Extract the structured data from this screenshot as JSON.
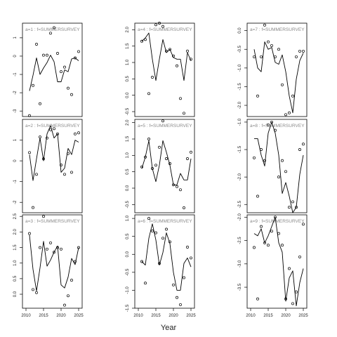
{
  "chart_data": [
    {
      "type": "line",
      "panel": "a=1",
      "label": "a=1 : f=SUMMERSURVEY",
      "ylim": [
        -3.3,
        1.8
      ],
      "yticks": [
        -3,
        -2,
        -1,
        0,
        1
      ],
      "series": [
        {
          "kind": "line",
          "x": [
            2011,
            2012,
            2013,
            2014,
            2015,
            2016,
            2017,
            2018,
            2019,
            2020,
            2021,
            2022,
            2023,
            2024,
            2025
          ],
          "values": [
            -1.9,
            -1.05,
            -0.1,
            -1.0,
            -0.65,
            -0.35,
            0.05,
            -0.3,
            -1.4,
            -1.4,
            -0.75,
            -0.85,
            -0.15,
            -0.1,
            -0.25
          ]
        },
        {
          "kind": "points",
          "x": [
            2011,
            2012,
            2013,
            2014,
            2015,
            2016,
            2017,
            2018,
            2019,
            2020,
            2021,
            2022,
            2023,
            2024,
            2025
          ],
          "values": [
            -3.25,
            -1.6,
            0.65,
            -2.6,
            0.05,
            0.05,
            1.25,
            1.55,
            0.15,
            -0.85,
            -0.6,
            -1.75,
            -2.1,
            -0.1,
            0.25
          ]
        }
      ]
    },
    {
      "type": "line",
      "panel": "a=4",
      "label": "a=4 : f=SUMMERSURVEY",
      "ylim": [
        -0.65,
        2.2
      ],
      "yticks": [
        -0.5,
        0.0,
        0.5,
        1.0,
        1.5,
        2.0
      ],
      "series": [
        {
          "kind": "line",
          "x": [
            2011,
            2012,
            2013,
            2014,
            2015,
            2016,
            2017,
            2018,
            2019,
            2020,
            2021,
            2022,
            2023,
            2024,
            2025
          ],
          "values": [
            1.65,
            1.75,
            1.9,
            1.1,
            0.45,
            1.1,
            1.7,
            1.3,
            1.4,
            1.15,
            1.1,
            1.1,
            0.45,
            1.3,
            1.05
          ]
        },
        {
          "kind": "points",
          "x": [
            2011,
            2012,
            2013,
            2014,
            2015,
            2016,
            2017,
            2018,
            2019,
            2020,
            2021,
            2022,
            2023,
            2024,
            2025
          ],
          "values": [
            1.65,
            1.7,
            0.05,
            0.55,
            2.15,
            2.2,
            2.1,
            1.35,
            1.4,
            1.2,
            0.9,
            -0.1,
            -0.55,
            1.35,
            1.1
          ]
        }
      ]
    },
    {
      "type": "line",
      "panel": "a=7",
      "label": "a=7 : f=SUMMERSURVEY",
      "ylim": [
        -2.3,
        0.2
      ],
      "yticks": [
        -2.0,
        -1.5,
        -1.0,
        -0.5,
        0.0
      ],
      "series": [
        {
          "kind": "line",
          "x": [
            2011,
            2012,
            2013,
            2014,
            2015,
            2016,
            2017,
            2018,
            2019,
            2020,
            2021,
            2022,
            2023,
            2024,
            2025
          ],
          "values": [
            -0.5,
            -1.0,
            -1.1,
            -0.3,
            -0.5,
            -0.45,
            -0.85,
            -0.9,
            -0.65,
            -1.1,
            -1.75,
            -2.2,
            -1.3,
            -0.8,
            -0.6
          ]
        },
        {
          "kind": "points",
          "x": [
            2011,
            2012,
            2013,
            2014,
            2015,
            2016,
            2017,
            2018,
            2019,
            2020,
            2021,
            2022,
            2023,
            2024,
            2025
          ],
          "values": [
            -0.7,
            -1.75,
            -0.7,
            0.15,
            -0.3,
            -0.4,
            -0.7,
            -0.5,
            -1.45,
            -2.25,
            -2.2,
            -1.75,
            -0.7,
            -0.55,
            -0.55
          ]
        }
      ]
    },
    {
      "type": "line",
      "panel": "a=2",
      "label": "a=2 : f=SUMMERSURVEY",
      "ylim": [
        -2.5,
        2.0
      ],
      "yticks": [
        -2,
        -1,
        0,
        1
      ],
      "series": [
        {
          "kind": "line",
          "x": [
            2011,
            2012,
            2013,
            2014,
            2015,
            2016,
            2017,
            2018,
            2019,
            2020,
            2021,
            2022,
            2023,
            2024,
            2025
          ],
          "values": [
            0.3,
            -0.95,
            0.1,
            1.1,
            0.0,
            1.3,
            1.7,
            1.1,
            1.3,
            -0.55,
            -0.35,
            0.6,
            0.3,
            1.0,
            0.9
          ]
        },
        {
          "kind": "points",
          "x": [
            2011,
            2012,
            2013,
            2014,
            2015,
            2016,
            2017,
            2018,
            2019,
            2020,
            2021,
            2022,
            2023,
            2024,
            2025
          ],
          "values": [
            0.4,
            -2.25,
            -0.65,
            1.15,
            0.1,
            1.1,
            1.5,
            1.55,
            1.3,
            -0.2,
            -0.65,
            0.35,
            -0.55,
            1.3,
            1.35
          ]
        }
      ]
    },
    {
      "type": "line",
      "panel": "a=5",
      "label": "a=5 : f=SUMMERSURVEY",
      "ylim": [
        -0.75,
        2.1
      ],
      "yticks": [
        -0.5,
        0.0,
        0.5,
        1.0,
        1.5,
        2.0
      ],
      "series": [
        {
          "kind": "line",
          "x": [
            2011,
            2012,
            2013,
            2014,
            2015,
            2016,
            2017,
            2018,
            2019,
            2020,
            2021,
            2022,
            2023,
            2024,
            2025
          ],
          "values": [
            0.6,
            0.95,
            1.45,
            0.6,
            0.2,
            0.7,
            1.45,
            1.1,
            0.7,
            0.1,
            0.1,
            0.45,
            0.25,
            0.25,
            0.9
          ]
        },
        {
          "kind": "points",
          "x": [
            2011,
            2012,
            2013,
            2014,
            2015,
            2016,
            2017,
            2018,
            2019,
            2020,
            2021,
            2022,
            2023,
            2024,
            2025
          ],
          "values": [
            0.65,
            0.95,
            1.5,
            0.6,
            0.7,
            1.25,
            2.05,
            0.9,
            0.75,
            0.1,
            0.05,
            -0.05,
            -0.6,
            0.9,
            1.1
          ]
        }
      ]
    },
    {
      "type": "line",
      "panel": "a=8",
      "label": "a=8 : f=SUMMERSURVEY",
      "ylim": [
        -2.65,
        -0.95
      ],
      "yticks": [
        -2.5,
        -2.0,
        -1.5,
        -1.0
      ],
      "series": [
        {
          "kind": "line",
          "x": [
            2011,
            2012,
            2013,
            2014,
            2015,
            2016,
            2017,
            2018,
            2019,
            2020,
            2021,
            2022,
            2023,
            2024,
            2025
          ],
          "values": [
            -1.3,
            -1.3,
            -1.6,
            -1.8,
            -1.2,
            -1.0,
            -1.2,
            -1.6,
            -2.3,
            -2.1,
            -2.35,
            -2.65,
            -2.55,
            -1.95,
            -1.6
          ]
        },
        {
          "kind": "points",
          "x": [
            2011,
            2012,
            2013,
            2014,
            2015,
            2016,
            2017,
            2018,
            2019,
            2020,
            2021,
            2022,
            2023,
            2024,
            2025
          ],
          "values": [
            -1.65,
            -2.35,
            -1.5,
            -1.7,
            -1.05,
            -1.0,
            -1.15,
            -2.0,
            -1.7,
            -1.9,
            -2.55,
            -2.45,
            -2.55,
            -1.5,
            -1.4
          ]
        }
      ]
    },
    {
      "type": "line",
      "panel": "a=3",
      "label": "a=3 : f=SUMMERSURVEY",
      "ylim": [
        -0.45,
        2.55
      ],
      "yticks": [
        0.0,
        0.5,
        1.0,
        1.5,
        2.0,
        2.5
      ],
      "series": [
        {
          "kind": "line",
          "x": [
            2011,
            2012,
            2013,
            2014,
            2015,
            2016,
            2017,
            2018,
            2019,
            2020,
            2021,
            2022,
            2023,
            2024,
            2025
          ],
          "values": [
            1.9,
            0.8,
            0.1,
            0.85,
            1.7,
            0.9,
            1.1,
            1.35,
            1.55,
            0.3,
            0.2,
            0.55,
            1.15,
            0.95,
            1.5
          ]
        },
        {
          "kind": "points",
          "x": [
            2011,
            2012,
            2013,
            2014,
            2015,
            2016,
            2017,
            2018,
            2019,
            2020,
            2021,
            2022,
            2023,
            2024,
            2025
          ],
          "values": [
            1.95,
            0.15,
            0.05,
            1.5,
            2.5,
            1.45,
            1.65,
            1.35,
            1.5,
            1.45,
            -0.35,
            -0.05,
            0.45,
            1.05,
            1.5
          ]
        }
      ]
    },
    {
      "type": "line",
      "panel": "a=6",
      "label": "a=6 : f=SUMMERSURVEY",
      "ylim": [
        -1.5,
        1.1
      ],
      "yticks": [
        -1.5,
        -1.0,
        -0.5,
        0.0,
        0.5,
        1.0
      ],
      "series": [
        {
          "kind": "line",
          "x": [
            2011,
            2012,
            2013,
            2014,
            2015,
            2016,
            2017,
            2018,
            2019,
            2020,
            2021,
            2022,
            2023,
            2024,
            2025
          ],
          "values": [
            -0.2,
            -0.3,
            0.45,
            0.85,
            0.4,
            -0.3,
            0.05,
            0.6,
            0.3,
            -0.5,
            -1.0,
            -1.0,
            -0.25,
            -0.1,
            -0.35
          ]
        },
        {
          "kind": "points",
          "x": [
            2011,
            2012,
            2013,
            2014,
            2015,
            2016,
            2017,
            2018,
            2019,
            2020,
            2021,
            2022,
            2023,
            2024,
            2025
          ],
          "values": [
            -0.2,
            -0.8,
            1.0,
            0.65,
            0.6,
            -0.25,
            0.45,
            0.7,
            0.35,
            -0.85,
            -1.2,
            -1.4,
            -0.65,
            0.2,
            -0.1
          ]
        }
      ]
    },
    {
      "type": "line",
      "panel": "a=9",
      "label": "a=9 : f=SUMMERSURVEY",
      "ylim": [
        -3.95,
        -1.95
      ],
      "yticks": [
        -3.5,
        -3.0,
        -2.5,
        -2.0
      ],
      "series": [
        {
          "kind": "line",
          "x": [
            2011,
            2012,
            2013,
            2014,
            2015,
            2016,
            2017,
            2018,
            2019,
            2020,
            2021,
            2022,
            2023,
            2024,
            2025
          ],
          "values": [
            -2.35,
            -2.4,
            -2.25,
            -2.55,
            -2.4,
            -2.2,
            -2.0,
            -2.55,
            -2.75,
            -3.8,
            -3.3,
            -3.15,
            -3.9,
            -3.4,
            -3.1
          ]
        },
        {
          "kind": "points",
          "x": [
            2011,
            2012,
            2013,
            2014,
            2015,
            2016,
            2017,
            2018,
            2019,
            2020,
            2021,
            2022,
            2023,
            2024,
            2025
          ],
          "values": [
            -2.65,
            -3.75,
            -2.2,
            -2.55,
            -2.6,
            -2.3,
            -2.0,
            -2.35,
            -2.6,
            -3.75,
            -3.1,
            -3.85,
            -3.6,
            -2.85,
            -2.15
          ]
        }
      ]
    }
  ],
  "x_ticks": [
    "2010",
    "2015",
    "2020",
    "2025"
  ],
  "xlim": [
    2009,
    2026
  ],
  "x_axis_title": "Year"
}
